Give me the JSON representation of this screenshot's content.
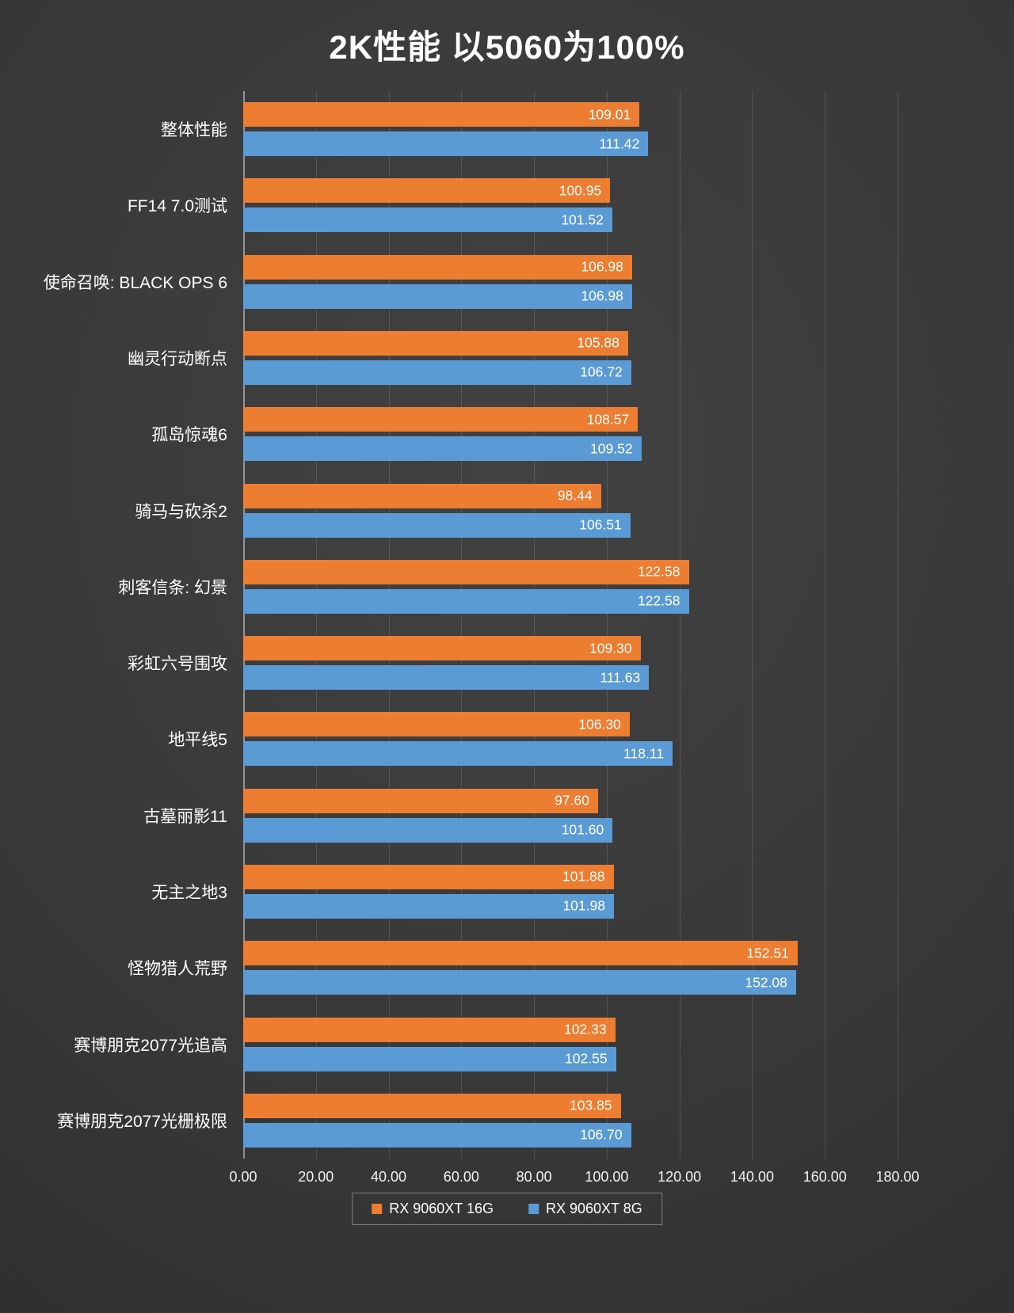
{
  "chart_data": {
    "type": "bar",
    "orientation": "horizontal",
    "title": "2K性能 以5060为100%",
    "categories": [
      "整体性能",
      "FF14 7.0测试",
      "使命召唤: BLACK OPS 6",
      "幽灵行动断点",
      "孤岛惊魂6",
      "骑马与砍杀2",
      "刺客信条: 幻景",
      "彩虹六号围攻",
      "地平线5",
      "古墓丽影11",
      "无主之地3",
      "怪物猎人荒野",
      "赛博朋克2077光追高",
      "赛博朋克2077光栅极限"
    ],
    "series": [
      {
        "name": "RX 9060XT 16G",
        "color": "#ED7D31",
        "values": [
          109.01,
          100.95,
          106.98,
          105.88,
          108.57,
          98.44,
          122.58,
          109.3,
          106.3,
          97.6,
          101.88,
          152.51,
          102.33,
          103.85
        ]
      },
      {
        "name": "RX 9060XT 8G",
        "color": "#5B9BD5",
        "values": [
          111.42,
          101.52,
          106.98,
          106.72,
          109.52,
          106.51,
          122.58,
          111.63,
          118.11,
          101.6,
          101.98,
          152.08,
          102.55,
          106.7
        ]
      }
    ],
    "xlim": [
      0,
      180
    ],
    "x_ticks": [
      "0.00",
      "20.00",
      "40.00",
      "60.00",
      "80.00",
      "100.00",
      "120.00",
      "140.00",
      "160.00",
      "180.00"
    ],
    "value_decimals": 2,
    "grid": true,
    "legend_position": "bottom"
  }
}
